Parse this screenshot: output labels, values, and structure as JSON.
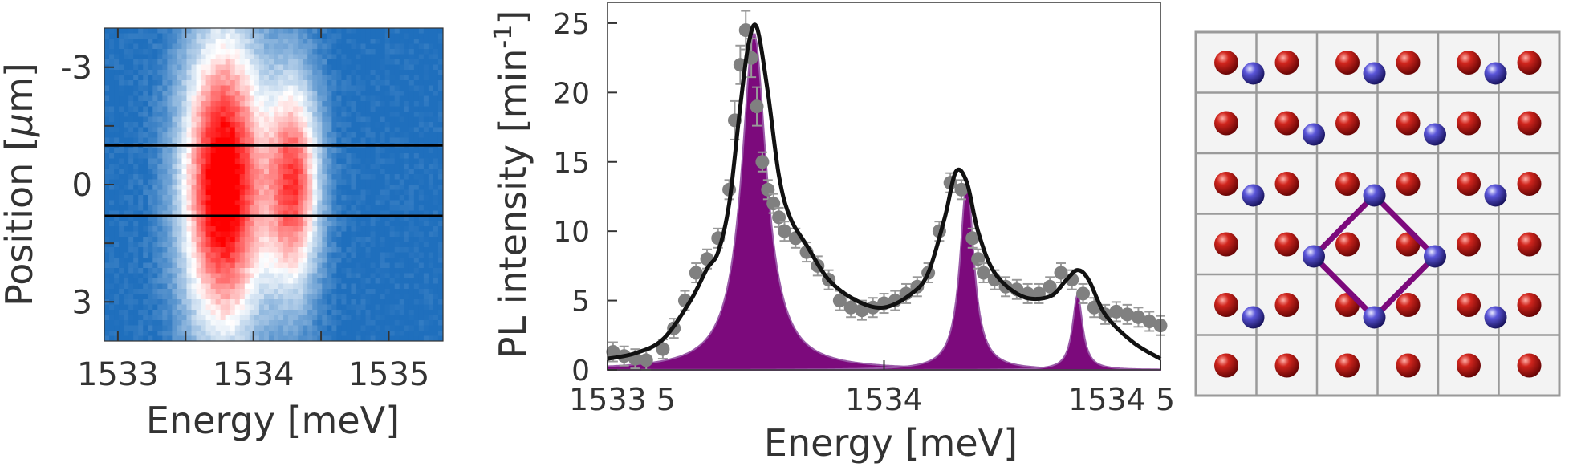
{
  "chart_data": [
    {
      "type": "heatmap",
      "xlabel": "Energy [meV]",
      "ylabel": "Position [",
      "ylabel_mu": "μ",
      "ylabel_unit": "m]",
      "xlim": [
        1532.9,
        1535.4
      ],
      "ylim": [
        -4,
        4
      ],
      "x_ticks": [
        1533,
        1533.5,
        1534,
        1534.5,
        1535
      ],
      "x_tick_labels": [
        "1533",
        "",
        "1534",
        "",
        "1535"
      ],
      "y_ticks": [
        -3,
        -1.5,
        0,
        1.5,
        3
      ],
      "y_tick_labels": [
        "-3",
        "",
        "0",
        "",
        "3"
      ],
      "peaks": [
        {
          "energy": 1533.78,
          "position": 0,
          "intensity": 1.0,
          "width_energy": 0.22,
          "width_position": 2.8
        },
        {
          "energy": 1534.3,
          "position": 0,
          "intensity": 0.75,
          "width_energy": 0.14,
          "width_position": 2.0
        }
      ],
      "background_color": "#1f6fbd",
      "peak_color": "#ff0000",
      "horizontal_lines_position": [
        -1,
        0.8
      ]
    },
    {
      "type": "line",
      "xlabel": "Energy [meV]",
      "ylabel": "PL intensity [min",
      "ylabel_sup": "-1",
      "ylabel_end": "]",
      "xlim": [
        1533.5,
        1534.5
      ],
      "ylim": [
        0,
        26.5
      ],
      "x_ticks": [
        1533.5,
        1534,
        1534.5
      ],
      "x_tick_labels": [
        "1533 5",
        "1534",
        "1534 5"
      ],
      "y_ticks": [
        0,
        5,
        10,
        15,
        20,
        25
      ],
      "y_tick_labels": [
        "0",
        "5",
        "10",
        "15",
        "20",
        "25"
      ],
      "series": [],
      "points": {
        "color": "#808080",
        "x": [
          1533.51,
          1533.53,
          1533.55,
          1533.57,
          1533.6,
          1533.62,
          1533.64,
          1533.66,
          1533.68,
          1533.7,
          1533.72,
          1533.73,
          1533.74,
          1533.75,
          1533.76,
          1533.77,
          1533.78,
          1533.79,
          1533.8,
          1533.81,
          1533.82,
          1533.84,
          1533.86,
          1533.88,
          1533.9,
          1533.92,
          1533.94,
          1533.96,
          1533.98,
          1534.0,
          1534.02,
          1534.04,
          1534.06,
          1534.08,
          1534.1,
          1534.12,
          1534.14,
          1534.16,
          1534.17,
          1534.18,
          1534.2,
          1534.22,
          1534.24,
          1534.26,
          1534.28,
          1534.3,
          1534.32,
          1534.34,
          1534.36,
          1534.38,
          1534.4,
          1534.42,
          1534.44,
          1534.46,
          1534.48,
          1534.5
        ],
        "y": [
          1.3,
          1.0,
          0.8,
          0.7,
          1.5,
          3.0,
          5.0,
          7.0,
          8.0,
          9.5,
          13.0,
          18.0,
          22.0,
          24.5,
          22.5,
          19.0,
          15.0,
          13.0,
          12.0,
          11.0,
          10.0,
          9.5,
          8.5,
          7.5,
          6.5,
          5.0,
          4.5,
          4.3,
          4.5,
          4.8,
          5.0,
          5.5,
          6.0,
          7.0,
          10.0,
          13.5,
          13.0,
          9.5,
          8.0,
          7.0,
          6.5,
          6.0,
          5.8,
          5.5,
          5.5,
          6.0,
          7.0,
          6.5,
          5.5,
          4.5,
          4.0,
          4.2,
          4.0,
          3.8,
          3.5,
          3.2
        ]
      },
      "fit_line": {
        "color": "#111111",
        "x": [
          1533.5,
          1533.55,
          1533.6,
          1533.65,
          1533.68,
          1533.7,
          1533.72,
          1533.74,
          1533.755,
          1533.77,
          1533.79,
          1533.81,
          1533.83,
          1533.86,
          1533.9,
          1533.95,
          1534.0,
          1534.05,
          1534.08,
          1534.11,
          1534.13,
          1534.15,
          1534.17,
          1534.2,
          1534.25,
          1534.3,
          1534.33,
          1534.35,
          1534.37,
          1534.4,
          1534.45,
          1534.5
        ],
        "y": [
          0.8,
          1.2,
          2.2,
          5.0,
          7.3,
          8.5,
          12.0,
          19.0,
          23.5,
          24.7,
          20.0,
          14.0,
          11.0,
          9.0,
          6.5,
          5.0,
          4.5,
          5.5,
          7.0,
          11.0,
          14.3,
          13.5,
          10.0,
          7.0,
          5.3,
          5.3,
          6.5,
          7.2,
          6.5,
          4.0,
          2.0,
          0.8
        ]
      },
      "fill_peaks": {
        "color": "#7c0a7c",
        "peaks": [
          {
            "center": 1533.765,
            "amplitude": 24.3,
            "width": 0.055
          },
          {
            "center": 1534.15,
            "amplitude": 13.8,
            "width": 0.03
          },
          {
            "center": 1534.35,
            "amplitude": 5.5,
            "width": 0.022
          }
        ]
      }
    }
  ],
  "lattice": {
    "red_atom_color": "#b01010",
    "blue_atom_color": "#3a35b8",
    "square_color": "#7c0a7c",
    "grid_color": "#9a9a9a"
  }
}
